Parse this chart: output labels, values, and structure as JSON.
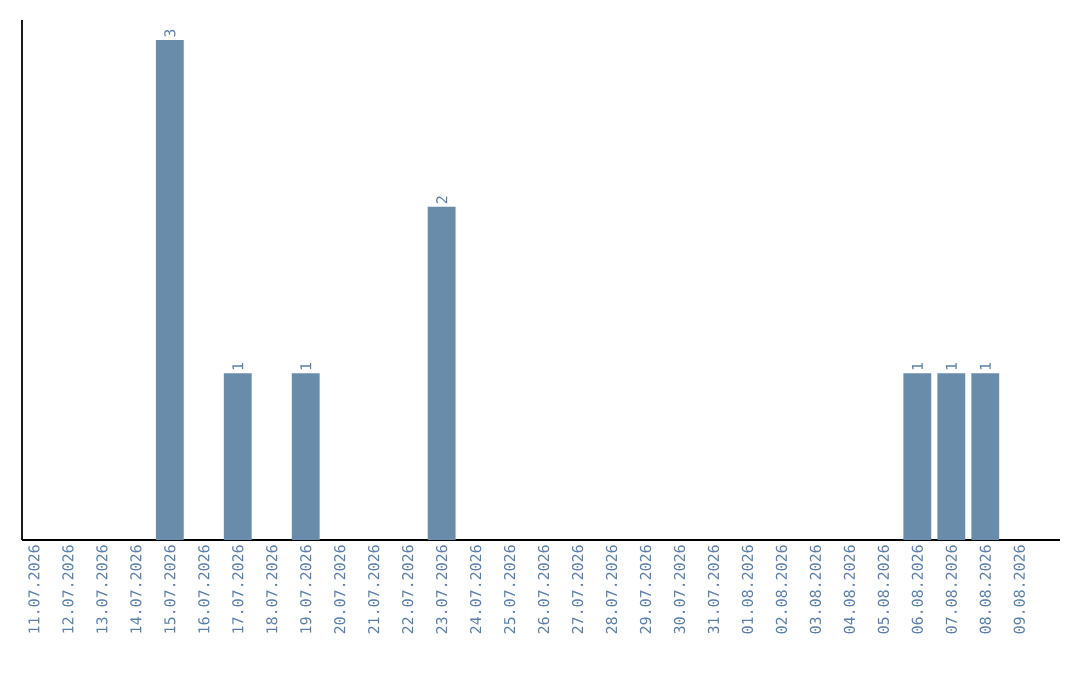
{
  "chart_data": {
    "type": "bar",
    "categories": [
      "11.07.2026",
      "12.07.2026",
      "13.07.2026",
      "14.07.2026",
      "15.07.2026",
      "16.07.2026",
      "17.07.2026",
      "18.07.2026",
      "19.07.2026",
      "20.07.2026",
      "21.07.2026",
      "22.07.2026",
      "23.07.2026",
      "24.07.2026",
      "25.07.2026",
      "26.07.2026",
      "27.07.2026",
      "28.07.2026",
      "29.07.2026",
      "30.07.2026",
      "31.07.2026",
      "01.08.2026",
      "02.08.2026",
      "03.08.2026",
      "04.08.2026",
      "05.08.2026",
      "06.08.2026",
      "07.08.2026",
      "08.08.2026",
      "09.08.2026"
    ],
    "values": [
      0,
      0,
      0,
      0,
      3,
      0,
      1,
      0,
      1,
      0,
      0,
      0,
      2,
      0,
      0,
      0,
      0,
      0,
      0,
      0,
      0,
      0,
      0,
      0,
      0,
      0,
      1,
      1,
      1,
      0
    ],
    "value_labels": [
      null,
      null,
      null,
      null,
      "3",
      null,
      "1",
      null,
      "1",
      null,
      null,
      null,
      "2",
      null,
      null,
      null,
      null,
      null,
      null,
      null,
      null,
      null,
      null,
      null,
      null,
      null,
      "1",
      "1",
      "1",
      null
    ],
    "color": "#6a8cab"
  }
}
